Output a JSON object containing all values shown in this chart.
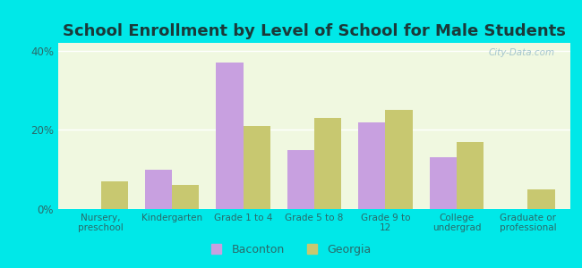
{
  "title": "School Enrollment by Level of School for Male Students",
  "categories": [
    "Nursery,\npreschool",
    "Kindergarten",
    "Grade 1 to 4",
    "Grade 5 to 8",
    "Grade 9 to\n12",
    "College\nundergrad",
    "Graduate or\nprofessional"
  ],
  "baconton": [
    0,
    10,
    37,
    15,
    22,
    13,
    0
  ],
  "georgia": [
    7,
    6,
    21,
    23,
    25,
    17,
    5
  ],
  "baconton_color": "#c8a0e0",
  "georgia_color": "#c8c870",
  "background_outer": "#00e8e8",
  "background_inner_top": "#f0f8e0",
  "background_inner_bottom": "#d8f0c0",
  "ylim": [
    0,
    42
  ],
  "yticks": [
    0,
    20,
    40
  ],
  "ytick_labels": [
    "0%",
    "20%",
    "40%"
  ],
  "bar_width": 0.38,
  "title_fontsize": 13,
  "title_color": "#1a3a3a",
  "tick_color": "#2a6a6a",
  "legend_labels": [
    "Baconton",
    "Georgia"
  ],
  "watermark": "City-Data.com"
}
